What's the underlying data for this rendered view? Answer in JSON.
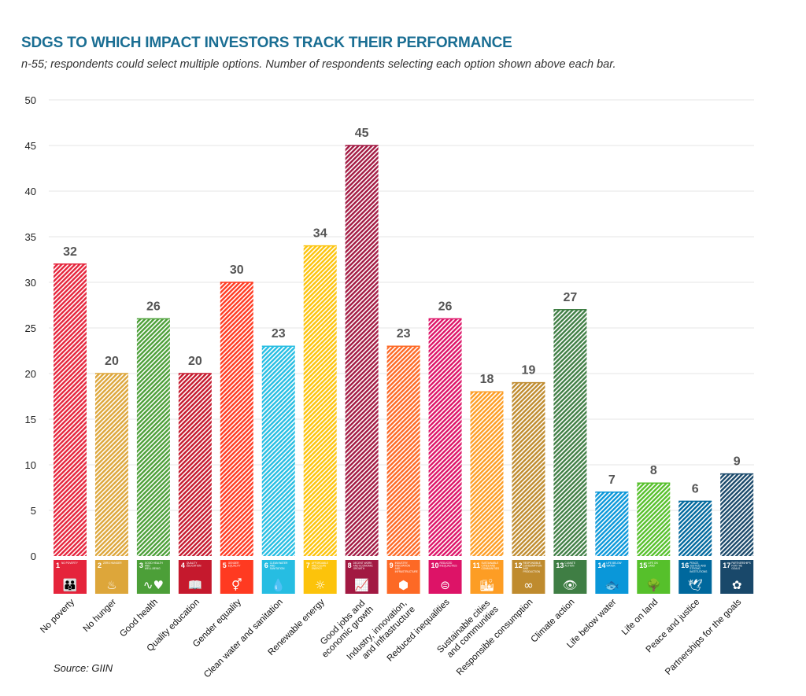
{
  "chart_data": {
    "type": "bar",
    "title": "SDGS TO WHICH IMPACT INVESTORS TRACK THEIR PERFORMANCE",
    "subtitle": "n-55; respondents could select multiple options. Number of respondents selecting each option shown above each bar.",
    "source": "Source: GIIN",
    "ylim": [
      0,
      50
    ],
    "yticks": [
      0,
      5,
      10,
      15,
      20,
      25,
      30,
      35,
      40,
      45,
      50
    ],
    "grid": true,
    "categories": [
      "No poverty",
      "No hunger",
      "Good health",
      "Quality education",
      "Gender equality",
      "Clean water and sanitation",
      "Renewable energy",
      "Good jobs and|economic growth",
      "Industry, innovation,|and infrastructure",
      "Reduced inequalities",
      "Sustainable cities|and communities",
      "Responsible consumption",
      "Climate action",
      "Life below water",
      "Life on land",
      "Peace and justice",
      "Partnerships for the goals"
    ],
    "values": [
      32,
      20,
      26,
      20,
      30,
      23,
      34,
      45,
      23,
      26,
      18,
      19,
      27,
      7,
      8,
      6,
      9
    ],
    "colors": [
      "#E5243B",
      "#DDA63A",
      "#4C9F38",
      "#C5192D",
      "#FF3A21",
      "#26BDE2",
      "#FCC30B",
      "#A21942",
      "#FD6925",
      "#DD1367",
      "#FD9D24",
      "#BF8B2E",
      "#3F7E44",
      "#0A97D9",
      "#56C02B",
      "#00689D",
      "#19486A"
    ],
    "sdg_icons": [
      {
        "num": "1",
        "title": "NO POVERTY",
        "icon": "people-icon",
        "glyph": "👪"
      },
      {
        "num": "2",
        "title": "ZERO HUNGER",
        "icon": "bowl-icon",
        "glyph": "♨"
      },
      {
        "num": "3",
        "title": "GOOD HEALTH AND WELL-BEING",
        "icon": "heartbeat-icon",
        "glyph": "∿♥"
      },
      {
        "num": "4",
        "title": "QUALITY EDUCATION",
        "icon": "book-icon",
        "glyph": "📖"
      },
      {
        "num": "5",
        "title": "GENDER EQUALITY",
        "icon": "gender-icon",
        "glyph": "⚥"
      },
      {
        "num": "6",
        "title": "CLEAN WATER AND SANITATION",
        "icon": "water-drop-icon",
        "glyph": "💧"
      },
      {
        "num": "7",
        "title": "AFFORDABLE AND CLEAN ENERGY",
        "icon": "sun-icon",
        "glyph": "☼"
      },
      {
        "num": "8",
        "title": "DECENT WORK AND ECONOMIC GROWTH",
        "icon": "growth-chart-icon",
        "glyph": "📈"
      },
      {
        "num": "9",
        "title": "INDUSTRY, INNOVATION AND INFRASTRUCTURE",
        "icon": "cubes-icon",
        "glyph": "⬢"
      },
      {
        "num": "10",
        "title": "REDUCED INEQUALITIES",
        "icon": "equals-circle-icon",
        "glyph": "⊜"
      },
      {
        "num": "11",
        "title": "SUSTAINABLE CITIES AND COMMUNITIES",
        "icon": "city-icon",
        "glyph": "🏙"
      },
      {
        "num": "12",
        "title": "RESPONSIBLE CONSUMPTION AND PRODUCTION",
        "icon": "infinity-icon",
        "glyph": "∞"
      },
      {
        "num": "13",
        "title": "CLIMATE ACTION",
        "icon": "eye-globe-icon",
        "glyph": "👁"
      },
      {
        "num": "14",
        "title": "LIFE BELOW WATER",
        "icon": "fish-icon",
        "glyph": "🐟"
      },
      {
        "num": "15",
        "title": "LIFE ON LAND",
        "icon": "tree-icon",
        "glyph": "🌳"
      },
      {
        "num": "16",
        "title": "PEACE, JUSTICE AND STRONG INSTITUTIONS",
        "icon": "dove-icon",
        "glyph": "🕊"
      },
      {
        "num": "17",
        "title": "PARTNERSHIPS FOR THE GOALS",
        "icon": "flower-rings-icon",
        "glyph": "✿"
      }
    ]
  }
}
